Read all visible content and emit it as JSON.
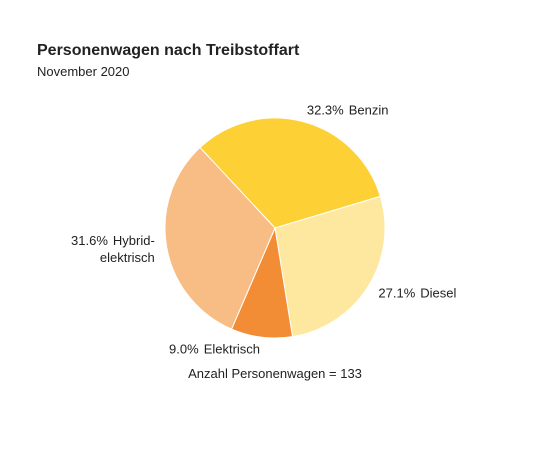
{
  "chart_data": {
    "type": "pie",
    "title": "Personenwagen nach Treibstoffart",
    "subtitle": "November 2020",
    "categories": [
      "Benzin",
      "Diesel",
      "Elektrisch",
      "Hybrid-elektrisch"
    ],
    "values": [
      32.3,
      27.1,
      9.0,
      31.6
    ],
    "value_labels": [
      "32.3%",
      "27.1%",
      "9.0%",
      "31.6%"
    ],
    "colors": [
      "#fdd135",
      "#fee79e",
      "#f28d35",
      "#f8bd84"
    ],
    "note": "Anzahl Personenwagen = 133"
  }
}
